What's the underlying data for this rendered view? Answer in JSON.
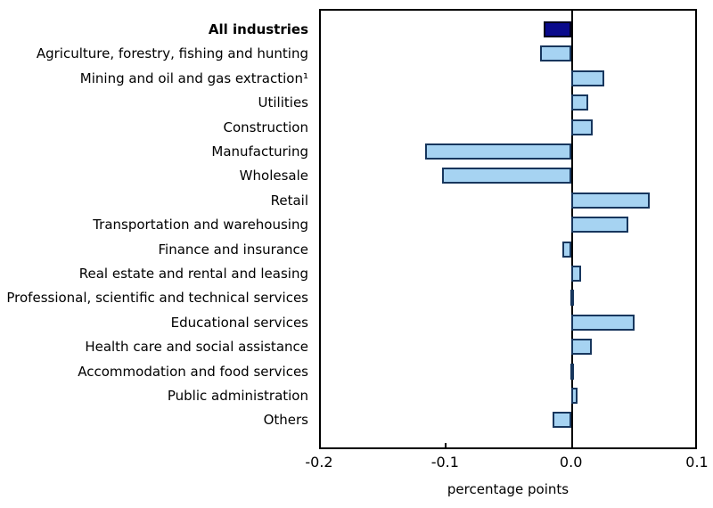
{
  "chart_data": {
    "type": "bar",
    "orientation": "horizontal",
    "title": "",
    "xlabel": "percentage points",
    "ylabel": "",
    "xlim": [
      -0.2,
      0.1
    ],
    "xticks": [
      -0.2,
      -0.1,
      0.0,
      0.1
    ],
    "xtick_labels": [
      "-0.2",
      "-0.1",
      "0.0",
      "0.1"
    ],
    "grid": false,
    "legend": false,
    "highlight_index": 0,
    "categories": [
      "All industries",
      "Agriculture, forestry, fishing and hunting",
      "Mining and oil and gas extraction¹",
      "Utilities",
      "Construction",
      "Manufacturing",
      "Wholesale",
      "Retail",
      "Transportation and warehousing",
      "Finance and insurance",
      "Real estate and rental and leasing",
      "Professional, scientific and technical services",
      "Educational services",
      "Health care and social assistance",
      "Accommodation and food services",
      "Public administration",
      "Others"
    ],
    "values": [
      -0.022,
      -0.025,
      0.026,
      0.013,
      0.017,
      -0.116,
      -0.103,
      0.062,
      0.045,
      -0.007,
      0.008,
      -0.001,
      0.05,
      0.016,
      -0.001,
      0.005,
      -0.015
    ],
    "colors": {
      "highlight_fill": "#0a0a8c",
      "highlight_border": "#00001e",
      "bar_fill": "#a6d3f2",
      "bar_border": "#17365d",
      "axis": "#000000",
      "text": "#000000",
      "background": "#ffffff"
    }
  }
}
